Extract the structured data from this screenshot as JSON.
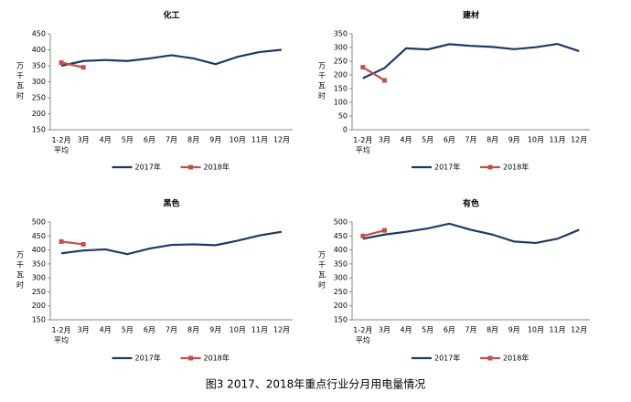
{
  "chart_data": [
    {
      "type": "line",
      "title": "化工",
      "y_label": "万千瓦时",
      "categories": [
        "1-2月\n平均",
        "3月",
        "4月",
        "5月",
        "6月",
        "7月",
        "8月",
        "9月",
        "10月",
        "11月",
        "12月"
      ],
      "series": [
        {
          "name": "2017年",
          "color": "#1f3864",
          "values": [
            350,
            365,
            368,
            365,
            373,
            383,
            373,
            355,
            378,
            393,
            400
          ]
        },
        {
          "name": "2018年",
          "color": "#c0504d",
          "marker": "square",
          "values": [
            360,
            345,
            null,
            null,
            null,
            null,
            null,
            null,
            null,
            null,
            null
          ]
        }
      ],
      "ylim": [
        150,
        450
      ],
      "yticks": [
        150,
        200,
        250,
        300,
        350,
        400,
        450
      ],
      "grid": false,
      "legend": "bottom"
    },
    {
      "type": "line",
      "title": "建材",
      "y_label": "万千瓦时",
      "categories": [
        "1-2月\n平均",
        "3月",
        "4月",
        "5月",
        "6月",
        "7月",
        "8月",
        "9月",
        "10月",
        "11月",
        "12月"
      ],
      "series": [
        {
          "name": "2017年",
          "color": "#1f3864",
          "values": [
            188,
            225,
            297,
            293,
            312,
            306,
            302,
            294,
            301,
            313,
            287
          ]
        },
        {
          "name": "2018年",
          "color": "#c0504d",
          "marker": "square",
          "values": [
            228,
            180,
            null,
            null,
            null,
            null,
            null,
            null,
            null,
            null,
            null
          ]
        }
      ],
      "ylim": [
        0,
        350
      ],
      "yticks": [
        0,
        50,
        100,
        150,
        200,
        250,
        300,
        350
      ],
      "grid": false,
      "legend": "bottom"
    },
    {
      "type": "line",
      "title": "黑色",
      "y_label": "万千瓦时",
      "categories": [
        "1-2月\n平均",
        "3月",
        "4月",
        "5月",
        "6月",
        "7月",
        "8月",
        "9月",
        "10月",
        "11月",
        "12月"
      ],
      "series": [
        {
          "name": "2017年",
          "color": "#1f3864",
          "values": [
            388,
            398,
            402,
            385,
            405,
            418,
            420,
            417,
            433,
            452,
            465
          ]
        },
        {
          "name": "2018年",
          "color": "#c0504d",
          "marker": "square",
          "values": [
            430,
            420,
            null,
            null,
            null,
            null,
            null,
            null,
            null,
            null,
            null
          ]
        }
      ],
      "ylim": [
        150,
        500
      ],
      "yticks": [
        150,
        200,
        250,
        300,
        350,
        400,
        450,
        500
      ],
      "grid": false,
      "legend": "bottom"
    },
    {
      "type": "line",
      "title": "有色",
      "y_label": "万千瓦时",
      "categories": [
        "1-2月\n平均",
        "3月",
        "4月",
        "5月",
        "6月",
        "7月",
        "8月",
        "9月",
        "10月",
        "11月",
        "12月"
      ],
      "series": [
        {
          "name": "2017年",
          "color": "#1f3864",
          "values": [
            440,
            455,
            465,
            477,
            494,
            472,
            455,
            430,
            425,
            440,
            472
          ]
        },
        {
          "name": "2018年",
          "color": "#c0504d",
          "marker": "square",
          "values": [
            450,
            470,
            null,
            null,
            null,
            null,
            null,
            null,
            null,
            null,
            null
          ]
        }
      ],
      "ylim": [
        150,
        500
      ],
      "yticks": [
        150,
        200,
        250,
        300,
        350,
        400,
        450,
        500
      ],
      "grid": false,
      "legend": "bottom"
    }
  ],
  "caption": "图3  2017、2018年重点行业分月用电量情况"
}
